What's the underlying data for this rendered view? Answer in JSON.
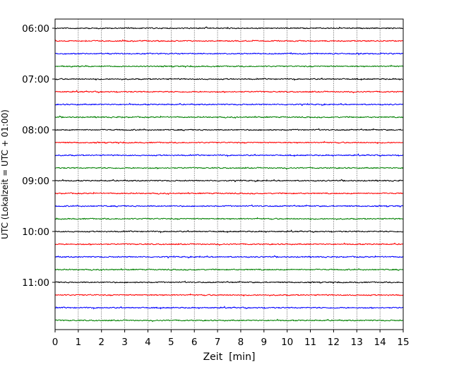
{
  "chart_data": {
    "type": "line",
    "title": "",
    "xlabel": "Zeit  [min]",
    "ylabel": "UTC (Lokalzeit = UTC + 01:00)",
    "xlim": [
      0,
      15
    ],
    "x_ticks": [
      "0",
      "1",
      "2",
      "3",
      "4",
      "5",
      "6",
      "7",
      "8",
      "9",
      "10",
      "11",
      "12",
      "13",
      "14",
      "15"
    ],
    "y_ticks": [
      "06:00",
      "07:00",
      "08:00",
      "09:00",
      "10:00",
      "11:00"
    ],
    "grid": "vertical dotted",
    "trace_start": "06:00",
    "trace_interval_min": 15,
    "trace_count": 24,
    "series_colors": [
      "#000000",
      "#ff0000",
      "#0000ff",
      "#008000"
    ],
    "series_name_colors": [
      "black",
      "red",
      "blue",
      "green"
    ]
  }
}
